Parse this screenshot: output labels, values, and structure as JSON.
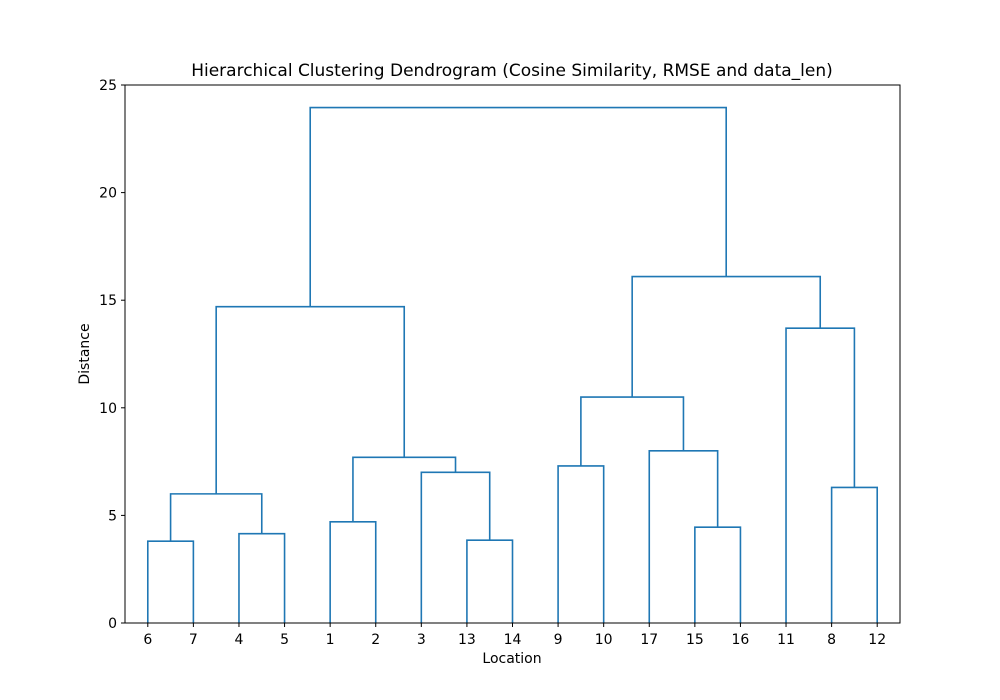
{
  "chart_data": {
    "type": "dendrogram",
    "title": "Hierarchical Clustering Dendrogram (Cosine Similarity, RMSE and data_len)",
    "xlabel": "Location",
    "ylabel": "Distance",
    "ylim": [
      0,
      25
    ],
    "yticks": [
      0,
      5,
      10,
      15,
      20,
      25
    ],
    "grid": false,
    "leaves": [
      "6",
      "7",
      "4",
      "5",
      "1",
      "2",
      "3",
      "13",
      "14",
      "9",
      "10",
      "17",
      "15",
      "16",
      "11",
      "8",
      "12"
    ],
    "merges": [
      {
        "left": "leaf:6",
        "right": "leaf:7",
        "height": 3.8
      },
      {
        "left": "leaf:4",
        "right": "leaf:5",
        "height": 4.15
      },
      {
        "left": "merge:0",
        "right": "merge:1",
        "height": 6.0
      },
      {
        "left": "leaf:1",
        "right": "leaf:2",
        "height": 4.7
      },
      {
        "left": "leaf:13",
        "right": "leaf:14",
        "height": 3.85
      },
      {
        "left": "leaf:3",
        "right": "merge:4",
        "height": 7.0
      },
      {
        "left": "merge:3",
        "right": "merge:5",
        "height": 7.7
      },
      {
        "left": "merge:2",
        "right": "merge:6",
        "height": 14.7
      },
      {
        "left": "leaf:9",
        "right": "leaf:10",
        "height": 7.3
      },
      {
        "left": "leaf:15",
        "right": "leaf:16",
        "height": 4.45
      },
      {
        "left": "leaf:17",
        "right": "merge:9",
        "height": 8.0
      },
      {
        "left": "merge:8",
        "right": "merge:10",
        "height": 10.5
      },
      {
        "left": "leaf:8",
        "right": "leaf:12",
        "height": 6.3
      },
      {
        "left": "leaf:11",
        "right": "merge:12",
        "height": 13.7
      },
      {
        "left": "merge:11",
        "right": "merge:13",
        "height": 16.1
      },
      {
        "left": "merge:7",
        "right": "merge:14",
        "height": 23.95
      }
    ],
    "line_color": "#1f77b4"
  }
}
